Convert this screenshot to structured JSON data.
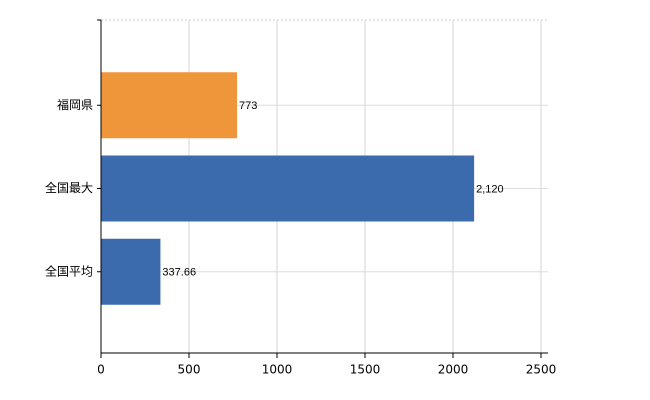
{
  "chart_data": {
    "type": "bar",
    "orientation": "horizontal",
    "categories": [
      "福岡県",
      "全国最大",
      "全国平均"
    ],
    "values": [
      773,
      2120,
      337.66
    ],
    "value_labels": [
      "773",
      "2,120",
      "337.66"
    ],
    "colors": [
      "#f0963a",
      "#3b6aad",
      "#3b6aad"
    ],
    "xlim": [
      0,
      2500
    ],
    "xticks": [
      0,
      500,
      1000,
      1500,
      2000,
      2500
    ],
    "grid": true
  }
}
